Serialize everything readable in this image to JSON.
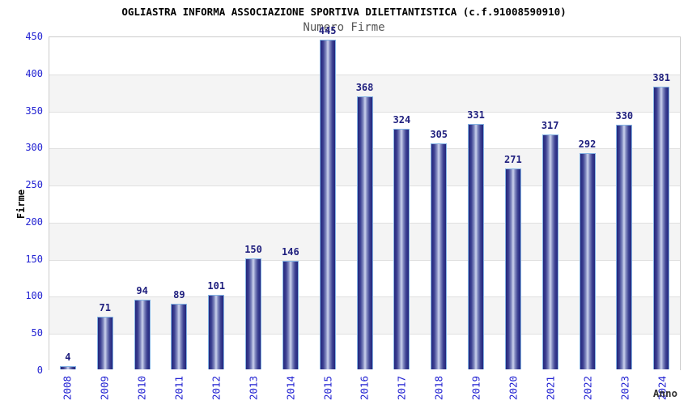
{
  "header": {
    "title": "OGLIASTRA INFORMA ASSOCIAZIONE SPORTIVA DILETTANTISTICA (c.f.91008590910)",
    "subtitle": "Numero Firme"
  },
  "chart_data": {
    "type": "bar",
    "title": "OGLIASTRA INFORMA ASSOCIAZIONE SPORTIVA DILETTANTISTICA (c.f.91008590910)",
    "subtitle": "Numero Firme",
    "xlabel": "Anno",
    "ylabel": "Firme",
    "categories": [
      "2008",
      "2009",
      "2010",
      "2011",
      "2012",
      "2013",
      "2014",
      "2015",
      "2016",
      "2017",
      "2018",
      "2019",
      "2020",
      "2021",
      "2022",
      "2023",
      "2024"
    ],
    "values": [
      4,
      71,
      94,
      89,
      101,
      150,
      146,
      445,
      368,
      324,
      305,
      331,
      271,
      317,
      292,
      330,
      381
    ],
    "ylim": [
      0,
      450
    ],
    "ytick_step": 50,
    "yticks": [
      0,
      50,
      100,
      150,
      200,
      250,
      300,
      350,
      400,
      450
    ],
    "grid": "horizontal gridlines with alternating shaded bands",
    "legend_position": "none",
    "colors": {
      "bar_edge_dark": "#23267d",
      "bar_mid": "#7d85bd",
      "bar_highlight": "#cdd3ee",
      "bar_border": "#85b4e4",
      "axis_tick_label": "#2222d2",
      "value_label": "#1f1f7e",
      "title_text": "#000000",
      "subtitle_text": "#555555",
      "band_fill": "#f4f4f4",
      "gridline": "#e0e0e0",
      "plot_border": "#cccccc",
      "xlabel_text": "#333333"
    }
  }
}
